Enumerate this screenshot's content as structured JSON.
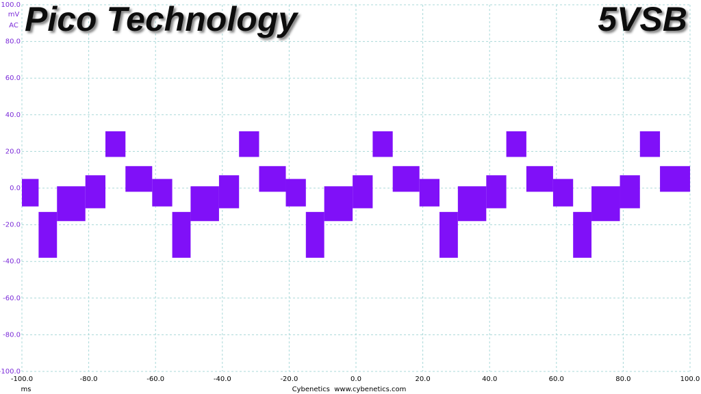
{
  "chart_data": {
    "type": "band",
    "title": "Pico Technology",
    "subtitle": "5VSB",
    "y_unit": "mV",
    "y_coupling": "AC",
    "x_label": "ms",
    "footer": "Cybenetics  www.cybenetics.com",
    "color": "#8010f8",
    "grid": true,
    "xlim": [
      -100,
      100
    ],
    "ylim": [
      -100,
      100
    ],
    "xticks": [
      {
        "value": -100,
        "label": "-100.0"
      },
      {
        "value": -80,
        "label": "-80.0"
      },
      {
        "value": -60,
        "label": "-60.0"
      },
      {
        "value": -40,
        "label": "-40.0"
      },
      {
        "value": -20,
        "label": "-20.0"
      },
      {
        "value": 0,
        "label": "0.0"
      },
      {
        "value": 20,
        "label": "20.0"
      },
      {
        "value": 40,
        "label": "40.0"
      },
      {
        "value": 60,
        "label": "60.0"
      },
      {
        "value": 80,
        "label": "80.0"
      },
      {
        "value": 100,
        "label": "100.0"
      }
    ],
    "yticks": [
      {
        "value": -100,
        "label": "-100.0"
      },
      {
        "value": -80,
        "label": "-80.0"
      },
      {
        "value": -60,
        "label": "-60.0"
      },
      {
        "value": -40,
        "label": "-40.0"
      },
      {
        "value": -20,
        "label": "-20.0"
      },
      {
        "value": 0,
        "label": "0.0"
      },
      {
        "value": 20,
        "label": "20.0"
      },
      {
        "value": 40,
        "label": "40.0"
      },
      {
        "value": 60,
        "label": "60.0"
      },
      {
        "value": 80,
        "label": "80.0"
      },
      {
        "value": 100,
        "label": "100.0"
      }
    ],
    "segments": {
      "start": [
        -100,
        -95,
        -89.5,
        -81,
        -75,
        -69,
        -61,
        -55,
        -49.5,
        -41,
        -35,
        -29,
        -21,
        -15,
        -9.5,
        -1,
        5,
        11,
        19,
        25,
        30.5,
        39,
        45,
        51,
        59,
        65,
        70.5,
        79,
        85,
        91
      ],
      "end": [
        -95,
        -89.5,
        -81,
        -75,
        -69,
        -61,
        -55,
        -49.5,
        -41,
        -35,
        -29,
        -21,
        -15,
        -9.5,
        -1,
        5,
        11,
        19,
        25,
        30.5,
        39,
        45,
        51,
        59,
        65,
        70.5,
        79,
        85,
        91,
        100
      ],
      "upper": [
        5,
        -13,
        1,
        7,
        31,
        12,
        5,
        -13,
        1,
        7,
        31,
        12,
        5,
        -13,
        1,
        7,
        31,
        12,
        5,
        -13,
        1,
        7,
        31,
        12,
        5,
        -13,
        1,
        7,
        31,
        12
      ],
      "lower": [
        -10,
        -38,
        -18,
        -11,
        17,
        -2,
        -10,
        -38,
        -18,
        -11,
        17,
        -2,
        -10,
        -38,
        -18,
        -11,
        17,
        -2,
        -10,
        -38,
        -18,
        -11,
        17,
        -2,
        -10,
        -38,
        -18,
        -11,
        17,
        -2
      ]
    }
  }
}
